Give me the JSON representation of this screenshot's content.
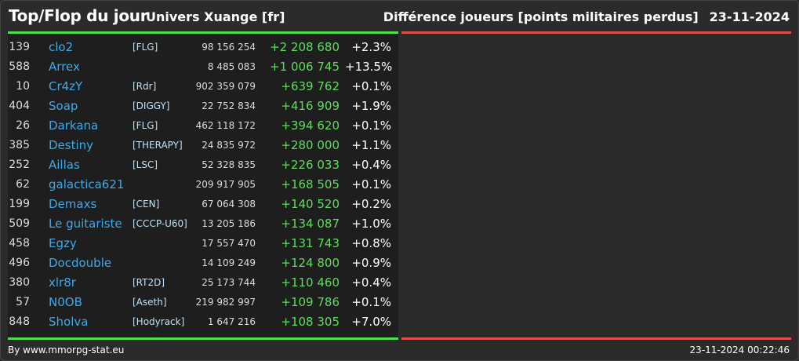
{
  "header": {
    "title": "Top/Flop du jour",
    "universe": "Univers Xuange [fr]",
    "right_title": "Différence joueurs [points militaires perdus]",
    "date": "23-11-2024"
  },
  "colors": {
    "positive_bar": "#4ce04c",
    "negative_bar": "#e0504c",
    "name": "#3fa9e8",
    "diff": "#5cde5c"
  },
  "rows": [
    {
      "rank": "139",
      "name": "clo2",
      "tag": "[FLG]",
      "points": "98 156 254",
      "diff": "+2 208 680",
      "pct": "+2.3%"
    },
    {
      "rank": "588",
      "name": "Arrex",
      "tag": "",
      "points": "8 485 083",
      "diff": "+1 006 745",
      "pct": "+13.5%"
    },
    {
      "rank": "10",
      "name": "Cr4zY",
      "tag": "[Rdr]",
      "points": "902 359 079",
      "diff": "+639 762",
      "pct": "+0.1%"
    },
    {
      "rank": "404",
      "name": "Soap",
      "tag": "[DIGGY]",
      "points": "22 752 834",
      "diff": "+416 909",
      "pct": "+1.9%"
    },
    {
      "rank": "26",
      "name": "Darkana",
      "tag": "[FLG]",
      "points": "462 118 172",
      "diff": "+394 620",
      "pct": "+0.1%"
    },
    {
      "rank": "385",
      "name": "Destiny",
      "tag": "[THERAPY]",
      "points": "24 835 972",
      "diff": "+280 000",
      "pct": "+1.1%"
    },
    {
      "rank": "252",
      "name": "Aillas",
      "tag": "[LSC]",
      "points": "52 328 835",
      "diff": "+226 033",
      "pct": "+0.4%"
    },
    {
      "rank": "62",
      "name": "galactica621",
      "tag": "",
      "points": "209 917 905",
      "diff": "+168 505",
      "pct": "+0.1%"
    },
    {
      "rank": "199",
      "name": "Demaxs",
      "tag": "[CEN]",
      "points": "67 064 308",
      "diff": "+140 520",
      "pct": "+0.2%"
    },
    {
      "rank": "509",
      "name": "Le guitariste",
      "tag": "[CCCP-U60]",
      "points": "13 205 186",
      "diff": "+134 087",
      "pct": "+1.0%"
    },
    {
      "rank": "458",
      "name": "Egzy",
      "tag": "",
      "points": "17 557 470",
      "diff": "+131 743",
      "pct": "+0.8%"
    },
    {
      "rank": "496",
      "name": "Docdouble",
      "tag": "",
      "points": "14 109 249",
      "diff": "+124 800",
      "pct": "+0.9%"
    },
    {
      "rank": "380",
      "name": "xlr8r",
      "tag": "[RT2D]",
      "points": "25 173 744",
      "diff": "+110 460",
      "pct": "+0.4%"
    },
    {
      "rank": "57",
      "name": "N0OB",
      "tag": "[Aseth]",
      "points": "219 982 997",
      "diff": "+109 786",
      "pct": "+0.1%"
    },
    {
      "rank": "848",
      "name": "Sholva",
      "tag": "[Hodyrack]",
      "points": "1 647 216",
      "diff": "+108 305",
      "pct": "+7.0%"
    }
  ],
  "footer": {
    "credit": "By www.mmorpg-stat.eu",
    "timestamp": "23-11-2024 00:22:46"
  }
}
